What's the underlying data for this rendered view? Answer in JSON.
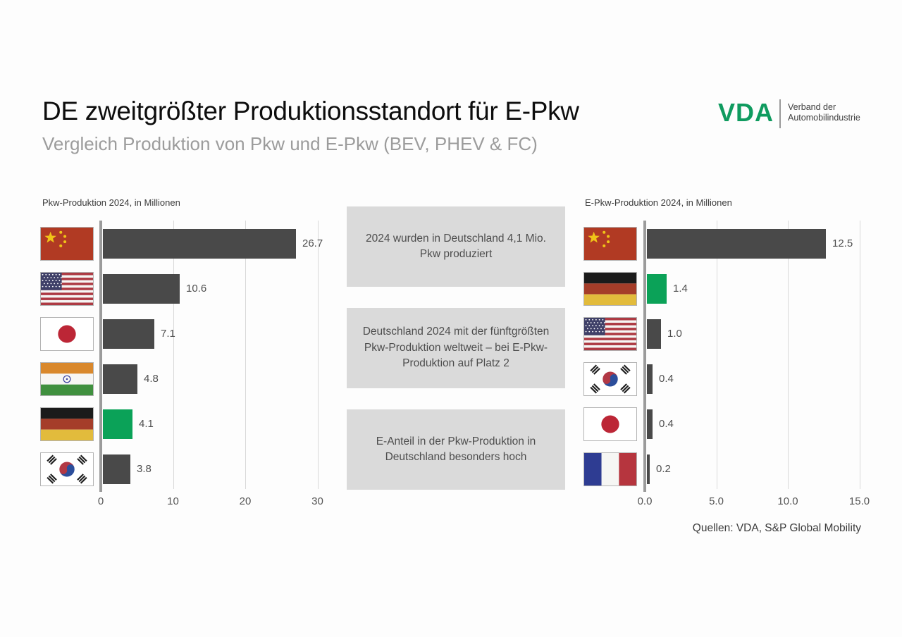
{
  "header": {
    "title": "DE zweitgrößter Produktionsstandort für E-Pkw",
    "subtitle": "Vergleich Produktion von Pkw und E-Pkw (BEV, PHEV & FC)"
  },
  "logo": {
    "brand": "VDA",
    "org_line1": "Verband der",
    "org_line2": "Automobilindustrie",
    "brand_color": "#0f9b5f"
  },
  "colors": {
    "bar_default": "#494949",
    "bar_highlight": "#0ba258",
    "infobox_bg": "#dadada",
    "axis_line": "#9b9b9b",
    "gridline": "#d9d9d9",
    "flag_border": "#b3b3b3"
  },
  "infoboxes": [
    {
      "text": "2024 wurden in Deutschland 4,1 Mio. Pkw produziert"
    },
    {
      "text": "Deutschland 2024 mit der fünftgrößten Pkw-Produktion weltweit – bei E-Pkw-Produktion auf Platz 2"
    },
    {
      "text": "E-Anteil in der Pkw-Produktion in Deutschland besonders hoch"
    }
  ],
  "source": "Quellen: VDA, S&P Global Mobility",
  "chart_data": [
    {
      "type": "bar",
      "orientation": "horizontal",
      "title": "Pkw-Produktion 2024, in Millionen",
      "categories": [
        "China",
        "USA",
        "Japan",
        "Indien",
        "Deutschland",
        "Südkorea"
      ],
      "values": [
        26.7,
        10.6,
        7.1,
        4.8,
        4.1,
        3.8
      ],
      "value_labels": [
        "26.7",
        "10.6",
        "7.1",
        "4.8",
        "4.1",
        "3.8"
      ],
      "flags": [
        "cn",
        "us",
        "jp",
        "in",
        "de",
        "kr"
      ],
      "highlight_index": 4,
      "highlight_country": "Deutschland",
      "x_ticks": [
        "0",
        "10",
        "20",
        "30"
      ],
      "xlim": [
        0,
        32
      ],
      "grid": true
    },
    {
      "type": "bar",
      "orientation": "horizontal",
      "title": "E-Pkw-Produktion 2024, in Millionen",
      "categories": [
        "China",
        "Deutschland",
        "USA",
        "Südkorea",
        "Japan",
        "Frankreich"
      ],
      "values": [
        12.5,
        1.4,
        1.0,
        0.4,
        0.4,
        0.2
      ],
      "value_labels": [
        "12.5",
        "1.4",
        "1.0",
        "0.4",
        "0.4",
        "0.2"
      ],
      "flags": [
        "cn",
        "de",
        "us",
        "kr",
        "jp",
        "fr"
      ],
      "highlight_index": 1,
      "highlight_country": "Deutschland",
      "x_ticks": [
        "0.0",
        "5.0",
        "10.0",
        "15.0"
      ],
      "xlim": [
        0,
        16
      ],
      "grid": true
    }
  ]
}
